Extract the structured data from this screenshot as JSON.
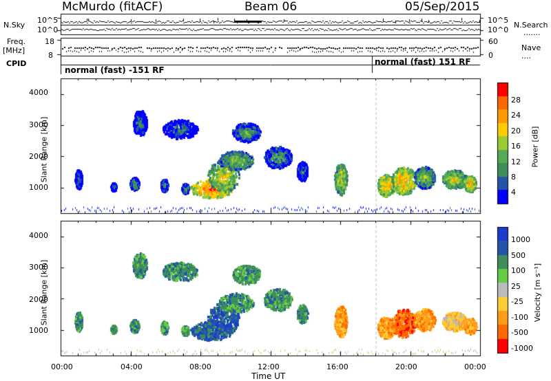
{
  "header": {
    "station": "McMurdo (fitACF)",
    "beam": "Beam 06",
    "date": "05/Sep/2015"
  },
  "left_labels": {
    "nsky": "N.Sky",
    "freq": "Freq.",
    "freq_unit": "[MHz]",
    "cpid": "CPID"
  },
  "right_labels": {
    "nsearch": "N.Search",
    "nsearch_dots": ".......",
    "nave": "Nave",
    "nave_dots": "...."
  },
  "cpid_segments": [
    {
      "label": "normal (fast) -151 RF"
    },
    {
      "label": "normal (fast) 151 RF"
    }
  ],
  "colors": {
    "power": [
      "#0000ff",
      "#2255aa",
      "#3e8e5b",
      "#55aa55",
      "#99cc33",
      "#ffcc00",
      "#ff9900",
      "#ff6600",
      "#ff0000"
    ],
    "velocity": [
      "#ff0000",
      "#ff6a00",
      "#ff9c1a",
      "#ffcc33",
      "#bbbbbb",
      "#66cc44",
      "#3e8e5b",
      "#2255aa",
      "#1a3ccc"
    ]
  },
  "chart_data": [
    {
      "type": "line",
      "name": "noise-panel",
      "left_axis": {
        "label": "N.Sky",
        "ticks": [
          "10^5",
          "10^0"
        ]
      },
      "right_axis": {
        "label": "N.Search",
        "ticks": [
          "10^5",
          "10^0"
        ]
      }
    },
    {
      "type": "scatter",
      "name": "freq-nave-panel",
      "left_axis": {
        "label": "Freq. [MHz]",
        "ticks": [
          "18",
          "8"
        ],
        "range": [
          8,
          18
        ]
      },
      "right_axis": {
        "label": "Nave",
        "ticks": [
          "60",
          "0"
        ],
        "range": [
          0,
          60
        ]
      }
    },
    {
      "type": "heatmap",
      "name": "power-panel",
      "ylabel": "Slant Range [km]",
      "yticks": [
        "4000",
        "3000",
        "2000",
        "1000"
      ],
      "ylim": [
        180,
        4500
      ],
      "xlim": [
        0,
        24
      ],
      "colorbar": {
        "label": "Power [dB]",
        "ticks": [
          "28",
          "24",
          "20",
          "16",
          "12",
          "8",
          "4"
        ],
        "range": [
          0,
          30
        ]
      }
    },
    {
      "type": "heatmap",
      "name": "velocity-panel",
      "ylabel": "Slant Range [km]",
      "yticks": [
        "4000",
        "3000",
        "2000",
        "1000"
      ],
      "ylim": [
        180,
        4500
      ],
      "xlim": [
        0,
        24
      ],
      "xlabel": "Time UT",
      "xticks": [
        "00:00",
        "04:00",
        "08:00",
        "12:00",
        "16:00",
        "20:00",
        "00:00"
      ],
      "colorbar": {
        "label": "Velocity [m s⁻¹]",
        "ticks": [
          "1000",
          "500",
          "100",
          "25",
          "-25",
          "-100",
          "-500",
          "-1000"
        ]
      }
    }
  ]
}
